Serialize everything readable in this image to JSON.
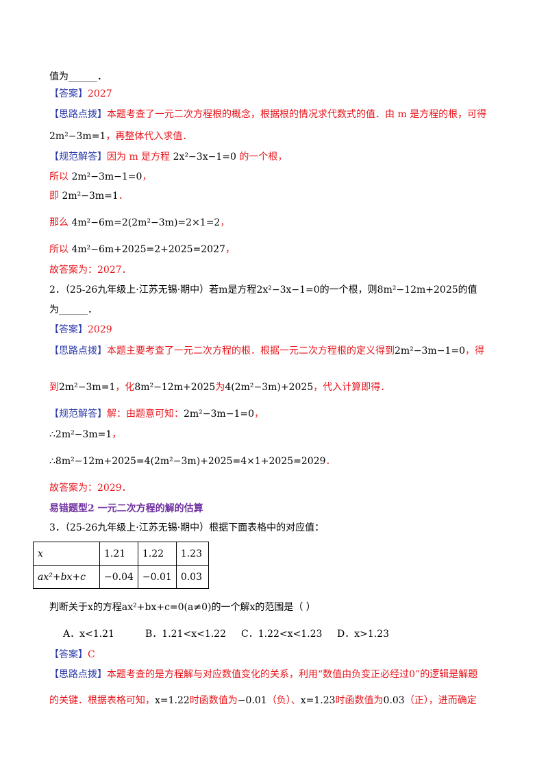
{
  "lines": [
    {
      "segments": [
        {
          "text": "值为______．",
          "color": "black"
        }
      ]
    },
    {
      "segments": [
        {
          "text": "【答案】",
          "color": "blue"
        },
        {
          "text": "2027",
          "color": "red"
        }
      ]
    },
    {
      "segments": [
        {
          "text": "【思路点拨】",
          "color": "blue"
        },
        {
          "text": "本题考查了一元二次方程根的概念，根据根的情况求代数式的值．由 m 是方程的根，可得",
          "color": "red"
        }
      ]
    },
    {
      "segments": [
        {
          "text": "2m²−3m=1",
          "color": "black"
        },
        {
          "text": "，再整体代入求值．",
          "color": "red"
        }
      ]
    },
    {
      "segments": [
        {
          "text": "【规范解答】",
          "color": "blue"
        },
        {
          "text": "因为 m 是方程 ",
          "color": "red"
        },
        {
          "text": "2x²−3x−1=0",
          "color": "black"
        },
        {
          "text": " 的一个根，",
          "color": "red"
        }
      ]
    },
    {
      "segments": [
        {
          "text": "所以 ",
          "color": "red"
        },
        {
          "text": "2m²−3m−1=0",
          "color": "black"
        },
        {
          "text": "，",
          "color": "red"
        }
      ]
    },
    {
      "segments": [
        {
          "text": "即 ",
          "color": "red"
        },
        {
          "text": "2m²−3m=1",
          "color": "black"
        },
        {
          "text": "．",
          "color": "red"
        }
      ]
    },
    {
      "segments": [
        {
          "text": "那么 ",
          "color": "red"
        },
        {
          "text": "4m²−6m=2(2m²−3m)=2×1=2",
          "color": "black"
        },
        {
          "text": "，",
          "color": "red"
        }
      ]
    },
    {
      "segments": [
        {
          "text": "所以 ",
          "color": "red"
        },
        {
          "text": "4m²−6m+2025=2+2025=2027",
          "color": "black"
        },
        {
          "text": "，",
          "color": "red"
        }
      ]
    },
    {
      "segments": [
        {
          "text": "故答案为：2027．",
          "color": "red"
        }
      ]
    },
    {
      "segments": [
        {
          "text": "2．（25-26九年级上·江苏无锡·期中）若m是方程2x²−3x−1=0的一个根，则8m²−12m+2025的值",
          "color": "black"
        }
      ]
    },
    {
      "segments": [
        {
          "text": "为______．",
          "color": "black"
        }
      ]
    },
    {
      "segments": [
        {
          "text": "【答案】",
          "color": "blue"
        },
        {
          "text": "2029",
          "color": "red"
        }
      ]
    },
    {
      "segments": [
        {
          "text": "【思路点拨】",
          "color": "blue"
        },
        {
          "text": "本题主要考查了一元二次方程的根．根据一元二次方程根的定义得到",
          "color": "red"
        },
        {
          "text": "2m²−3m−1=0",
          "color": "black"
        },
        {
          "text": "，得",
          "color": "red"
        }
      ]
    },
    {
      "segments": [
        {
          "text": "到",
          "color": "red"
        },
        {
          "text": "2m²−3m=1",
          "color": "black"
        },
        {
          "text": "，化",
          "color": "red"
        },
        {
          "text": "8m²−12m+2025",
          "color": "black"
        },
        {
          "text": "为",
          "color": "red"
        },
        {
          "text": "4(2m²−3m)+2025",
          "color": "black"
        },
        {
          "text": "，代入计算即得．",
          "color": "red"
        }
      ]
    },
    {
      "segments": [
        {
          "text": "【规范解答】",
          "color": "blue"
        },
        {
          "text": "解：由题意可知：",
          "color": "red"
        },
        {
          "text": "2m²−3m−1=0",
          "color": "black"
        },
        {
          "text": "，",
          "color": "red"
        }
      ]
    },
    {
      "segments": [
        {
          "text": "∴2m²−3m=1",
          "color": "black"
        },
        {
          "text": "，",
          "color": "red"
        }
      ]
    },
    {
      "segments": [
        {
          "text": "∴8m²−12m+2025=4(2m²−3m)+2025=4×1+2025=2029",
          "color": "black"
        },
        {
          "text": "．",
          "color": "red"
        }
      ]
    },
    {
      "segments": [
        {
          "text": "故答案为：2029．",
          "color": "red"
        }
      ]
    },
    {
      "segments": [
        {
          "text": "易错题型2 一元二次方程的解的估算",
          "color": "purple"
        }
      ]
    },
    {
      "segments": [
        {
          "text": "3．（25-26九年级上·江苏无锡·期中）根据下面表格中的对应值：",
          "color": "black"
        }
      ]
    },
    {
      "segments": [
        {
          "text": "判断关于x的方程ax²+bx+c=0(a≠0)的一个解x的范围是（    ）",
          "color": "black"
        }
      ]
    },
    {
      "segments": [
        {
          "text": "【答案】",
          "color": "blue"
        },
        {
          "text": "C",
          "color": "red"
        }
      ]
    },
    {
      "segments": [
        {
          "text": "【思路点拨】",
          "color": "blue"
        },
        {
          "text": "本题考查的是方程解与对应数值变化的关系，利用“数值由负变正必经过0”的逻辑是解题",
          "color": "red"
        }
      ]
    },
    {
      "segments": [
        {
          "text": "的关键．根据表格可知，",
          "color": "red"
        },
        {
          "text": "x=1.22",
          "color": "black"
        },
        {
          "text": "时函数值为",
          "color": "red"
        },
        {
          "text": "−0.01",
          "color": "black"
        },
        {
          "text": "（负）、",
          "color": "red"
        },
        {
          "text": "x=1.23",
          "color": "black"
        },
        {
          "text": "时函数值为",
          "color": "red"
        },
        {
          "text": "0.03",
          "color": "black"
        },
        {
          "text": "（正），进而确定",
          "color": "red"
        }
      ]
    }
  ],
  "table": {
    "rows": [
      [
        "x",
        "1.21",
        "1.22",
        "1.23"
      ],
      [
        "ax²+bx+c",
        "−0.04",
        "−0.01",
        "0.03"
      ]
    ]
  },
  "options": [
    "A．x<1.21",
    "B．1.21<x<1.22",
    "C．1.22<x<1.23",
    "D．x>1.23"
  ]
}
